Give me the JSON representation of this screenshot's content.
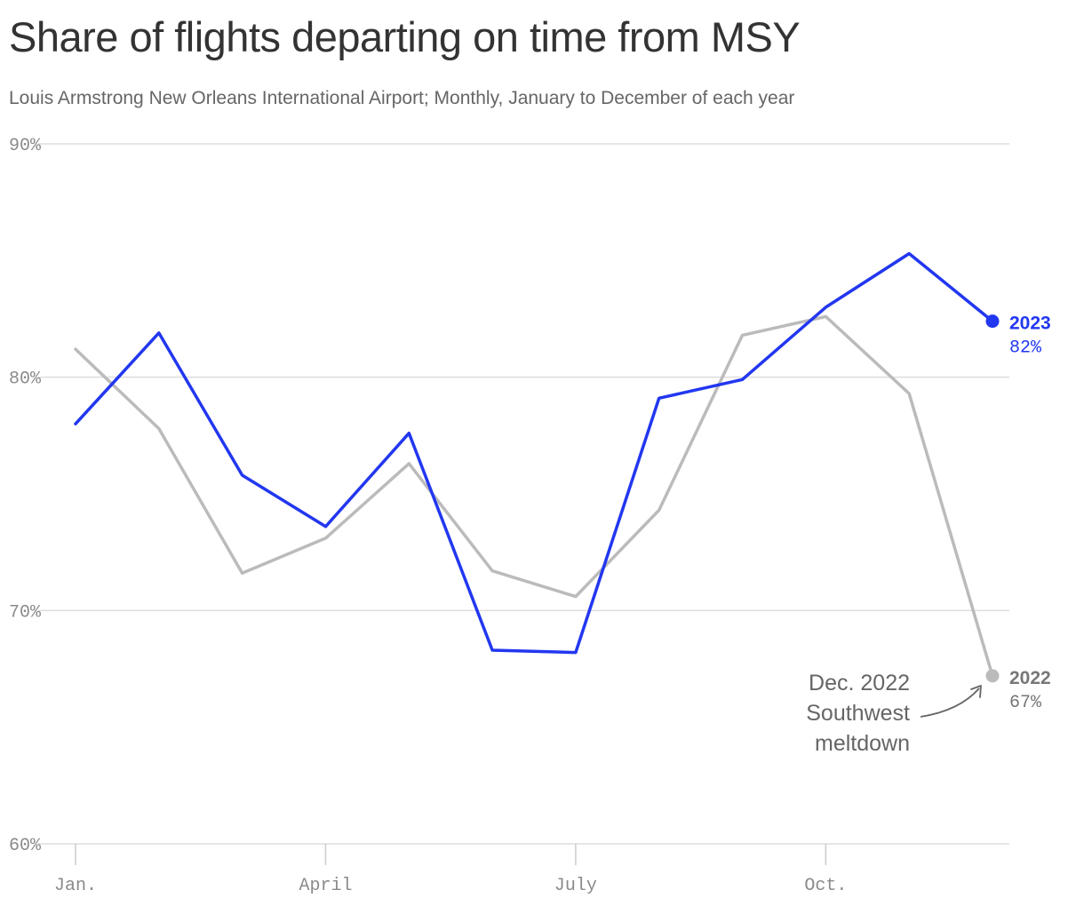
{
  "chart_data": {
    "type": "line",
    "title": "Share of flights departing on time from MSY",
    "subtitle": "Louis Armstrong New Orleans International Airport; Monthly, January to December of each year",
    "x_tick_labels": [
      "Jan.",
      "April",
      "July",
      "Oct."
    ],
    "y_tick_labels": [
      "90%",
      "80%",
      "70%",
      "60%"
    ],
    "ylim": [
      60,
      90
    ],
    "y_ticks": [
      90,
      80,
      70,
      60
    ],
    "x": [
      1,
      2,
      3,
      4,
      5,
      6,
      7,
      8,
      9,
      10,
      11,
      12
    ],
    "x_ticks": [
      1,
      4,
      7,
      10
    ],
    "series": [
      {
        "name": "2022",
        "color": "#bbbbbb",
        "label_color": "#777777",
        "values": [
          81.2,
          77.8,
          71.6,
          73.1,
          76.3,
          71.7,
          70.6,
          74.3,
          81.8,
          82.6,
          79.3,
          67.2
        ],
        "end_label": "2022",
        "end_value_label": "67%"
      },
      {
        "name": "2023",
        "color": "#2237f0",
        "label_color": "#2237f0",
        "values": [
          78.0,
          81.9,
          75.8,
          73.6,
          77.6,
          68.3,
          68.2,
          79.1,
          79.9,
          83.0,
          85.3,
          82.4
        ],
        "end_label": "2023",
        "end_value_label": "82%"
      }
    ],
    "annotation": {
      "lines": [
        "Dec. 2022",
        "Southwest",
        "meltdown"
      ]
    }
  }
}
